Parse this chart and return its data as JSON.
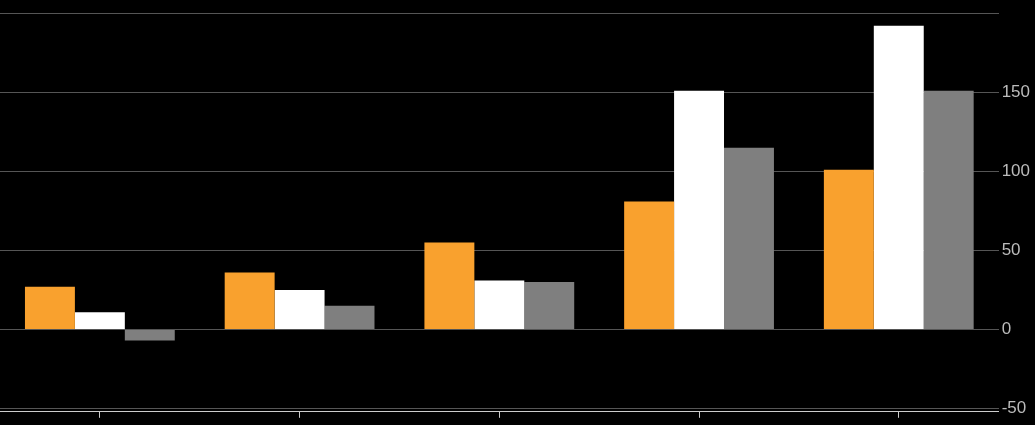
{
  "chart_data": {
    "type": "bar",
    "categories": [
      null,
      null,
      null,
      null,
      null
    ],
    "series": [
      {
        "color": "#f9a12e",
        "values": [
          27,
          36,
          55,
          81,
          101
        ]
      },
      {
        "color": "#ffffff",
        "values": [
          11,
          25,
          31,
          151,
          192
        ]
      },
      {
        "color": "#7f7f7f",
        "values": [
          -7,
          15,
          30,
          115,
          151
        ]
      }
    ],
    "ylim": [
      -52,
      200
    ],
    "yticks": [
      -50,
      0,
      50,
      100,
      150,
      {
        "value": 200,
        "label": null
      }
    ],
    "grid": "y",
    "legend": false
  }
}
